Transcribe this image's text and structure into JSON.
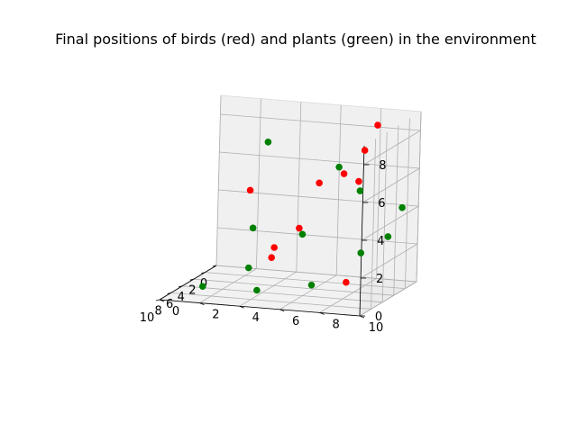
{
  "chart_data": {
    "type": "scatter3d",
    "title": "Final positions of birds (red) and plants (green) in the environment",
    "xlabel": "",
    "ylabel": "",
    "zlabel": "",
    "xlim": [
      0,
      10
    ],
    "ylim": [
      0,
      10
    ],
    "zlim": [
      0,
      9
    ],
    "x_ticks": [
      0,
      2,
      4,
      6,
      8,
      10
    ],
    "y_ticks": [
      0,
      2,
      4,
      6,
      8,
      10
    ],
    "z_ticks": [
      0,
      2,
      4,
      6,
      8
    ],
    "grid": true,
    "series": [
      {
        "color": "#ff0000",
        "points": [
          [
            0.5,
            8.0,
            8.2
          ],
          [
            0.9,
            7.5,
            6.9
          ],
          [
            2.2,
            7.6,
            5.5
          ],
          [
            2.0,
            6.8,
            5.8
          ],
          [
            1.0,
            5.3,
            5.0
          ],
          [
            0.4,
            1.7,
            4.2
          ],
          [
            3.3,
            5.0,
            3.0
          ],
          [
            0.5,
            3.0,
            1.3
          ],
          [
            6.5,
            8.3,
            1.0
          ],
          [
            5.6,
            4.3,
            1.8
          ]
        ]
      },
      {
        "color": "#008000",
        "points": [
          [
            0.3,
            2.5,
            6.8
          ],
          [
            0.4,
            6.1,
            5.8
          ],
          [
            1.2,
            7.4,
            4.8
          ],
          [
            2.2,
            9.8,
            4.3
          ],
          [
            0.8,
            2.0,
            2.3
          ],
          [
            4.6,
            9.8,
            3.2
          ],
          [
            0.9,
            4.5,
            2.2
          ],
          [
            4.0,
            8.3,
            2.1
          ],
          [
            1.4,
            2.0,
            0.3
          ],
          [
            5.5,
            6.3,
            0.5
          ],
          [
            7.0,
            4.0,
            0.3
          ],
          [
            8.1,
            1.6,
            0.5
          ]
        ]
      }
    ]
  }
}
